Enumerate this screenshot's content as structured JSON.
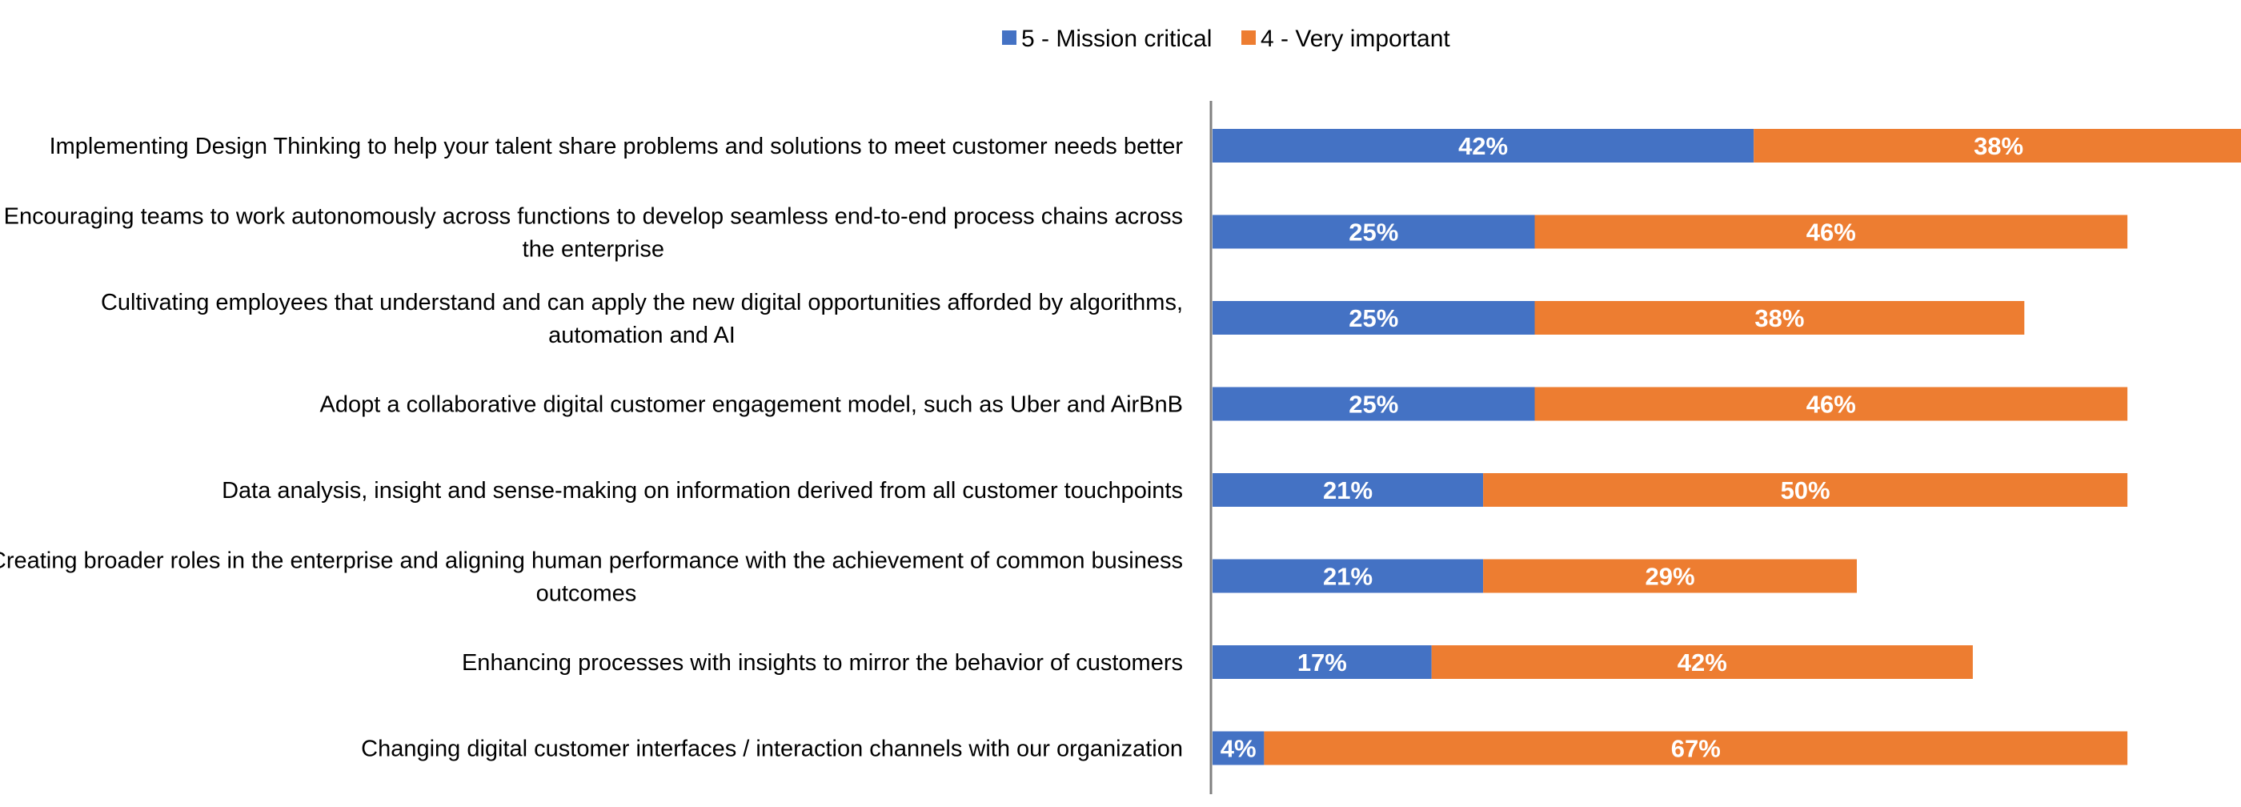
{
  "chart_data": {
    "type": "bar",
    "orientation": "horizontal",
    "stacked": true,
    "title": "",
    "xlabel": "",
    "ylabel": "",
    "xlim": [
      0,
      100
    ],
    "grid": false,
    "legend_position": "top-center",
    "value_suffix": "%",
    "categories": [
      [
        "Implementing Design Thinking to help your talent share problems and solutions to meet customer needs better"
      ],
      [
        "Encouraging teams to work autonomously across functions to develop seamless end-to-end process chains across",
        "the enterprise"
      ],
      [
        "Cultivating employees that understand and can apply the new digital opportunities afforded by algorithms,",
        "automation and AI"
      ],
      [
        "Adopt a collaborative digital customer engagement model, such as Uber and AirBnB"
      ],
      [
        "Data analysis, insight and sense-making on information derived from all customer touchpoints"
      ],
      [
        "Creating broader roles in the enterprise and aligning human performance with the achievement of common business",
        "outcomes"
      ],
      [
        "Enhancing processes with insights to mirror the behavior of customers"
      ],
      [
        "Changing digital customer interfaces / interaction channels with our organization"
      ]
    ],
    "series": [
      {
        "name": "5 - Mission critical",
        "color": "#4472C4",
        "values": [
          42,
          25,
          25,
          25,
          21,
          21,
          17,
          4
        ]
      },
      {
        "name": "4 - Very important",
        "color": "#ED7D31",
        "values": [
          38,
          46,
          38,
          46,
          50,
          29,
          42,
          67
        ]
      }
    ]
  }
}
